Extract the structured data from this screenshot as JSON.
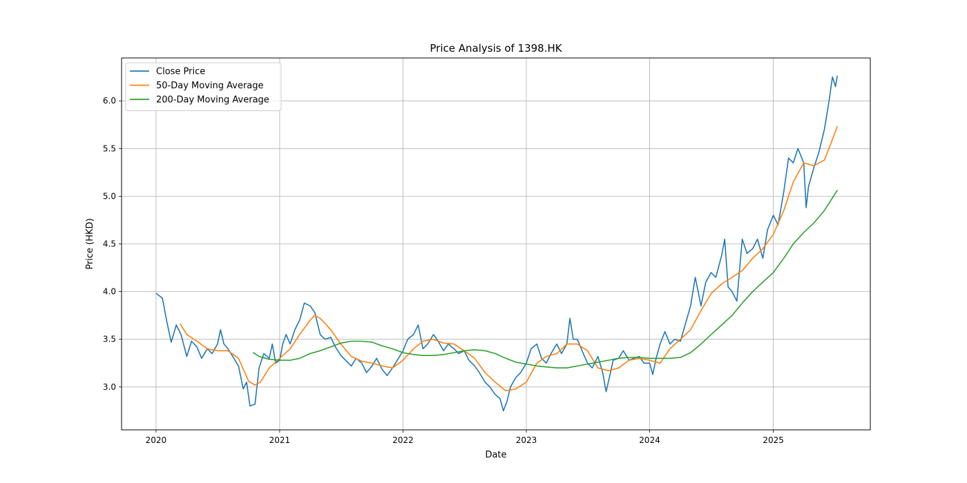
{
  "chart_data": {
    "type": "line",
    "title": "Price Analysis of 1398.HK",
    "xlabel": "Date",
    "ylabel": "Price (HKD)",
    "xlim": [
      "2019-09-21",
      "2025-10-15"
    ],
    "ylim": [
      2.55,
      6.45
    ],
    "x_ticks": [
      "2020",
      "2021",
      "2022",
      "2023",
      "2024",
      "2025"
    ],
    "y_ticks": [
      "3.0",
      "3.5",
      "4.0",
      "4.5",
      "5.0",
      "5.5",
      "6.0"
    ],
    "grid": true,
    "legend_position": "top-left",
    "series": [
      {
        "name": "Close Price",
        "color": "#1f77b4",
        "points": [
          [
            "2020-01-02",
            3.98
          ],
          [
            "2020-01-20",
            3.93
          ],
          [
            "2020-02-01",
            3.7
          ],
          [
            "2020-02-15",
            3.47
          ],
          [
            "2020-03-01",
            3.65
          ],
          [
            "2020-03-15",
            3.55
          ],
          [
            "2020-04-01",
            3.32
          ],
          [
            "2020-04-15",
            3.48
          ],
          [
            "2020-05-01",
            3.42
          ],
          [
            "2020-05-15",
            3.3
          ],
          [
            "2020-06-01",
            3.4
          ],
          [
            "2020-06-15",
            3.35
          ],
          [
            "2020-07-01",
            3.45
          ],
          [
            "2020-07-10",
            3.6
          ],
          [
            "2020-07-20",
            3.45
          ],
          [
            "2020-08-01",
            3.4
          ],
          [
            "2020-08-15",
            3.32
          ],
          [
            "2020-09-01",
            3.22
          ],
          [
            "2020-09-15",
            2.98
          ],
          [
            "2020-09-25",
            3.05
          ],
          [
            "2020-10-05",
            2.8
          ],
          [
            "2020-10-20",
            2.82
          ],
          [
            "2020-11-01",
            3.2
          ],
          [
            "2020-11-15",
            3.35
          ],
          [
            "2020-12-01",
            3.3
          ],
          [
            "2020-12-10",
            3.45
          ],
          [
            "2020-12-20",
            3.25
          ],
          [
            "2021-01-01",
            3.28
          ],
          [
            "2021-01-10",
            3.45
          ],
          [
            "2021-01-20",
            3.55
          ],
          [
            "2021-02-01",
            3.45
          ],
          [
            "2021-02-15",
            3.6
          ],
          [
            "2021-03-01",
            3.7
          ],
          [
            "2021-03-15",
            3.88
          ],
          [
            "2021-04-01",
            3.85
          ],
          [
            "2021-04-15",
            3.78
          ],
          [
            "2021-05-01",
            3.55
          ],
          [
            "2021-05-15",
            3.5
          ],
          [
            "2021-06-01",
            3.52
          ],
          [
            "2021-06-15",
            3.42
          ],
          [
            "2021-07-01",
            3.33
          ],
          [
            "2021-07-15",
            3.28
          ],
          [
            "2021-08-01",
            3.22
          ],
          [
            "2021-08-15",
            3.3
          ],
          [
            "2021-09-01",
            3.25
          ],
          [
            "2021-09-15",
            3.15
          ],
          [
            "2021-10-01",
            3.22
          ],
          [
            "2021-10-15",
            3.3
          ],
          [
            "2021-11-01",
            3.18
          ],
          [
            "2021-11-15",
            3.12
          ],
          [
            "2021-12-01",
            3.2
          ],
          [
            "2021-12-15",
            3.28
          ],
          [
            "2022-01-01",
            3.38
          ],
          [
            "2022-01-15",
            3.5
          ],
          [
            "2022-02-01",
            3.55
          ],
          [
            "2022-02-15",
            3.65
          ],
          [
            "2022-03-01",
            3.4
          ],
          [
            "2022-03-15",
            3.45
          ],
          [
            "2022-04-01",
            3.55
          ],
          [
            "2022-04-15",
            3.48
          ],
          [
            "2022-05-01",
            3.38
          ],
          [
            "2022-05-15",
            3.45
          ],
          [
            "2022-06-01",
            3.4
          ],
          [
            "2022-06-15",
            3.35
          ],
          [
            "2022-07-01",
            3.38
          ],
          [
            "2022-07-15",
            3.28
          ],
          [
            "2022-08-01",
            3.22
          ],
          [
            "2022-08-15",
            3.15
          ],
          [
            "2022-09-01",
            3.05
          ],
          [
            "2022-09-15",
            3.0
          ],
          [
            "2022-10-01",
            2.92
          ],
          [
            "2022-10-15",
            2.88
          ],
          [
            "2022-10-25",
            2.75
          ],
          [
            "2022-11-05",
            2.85
          ],
          [
            "2022-11-15",
            3.0
          ],
          [
            "2022-12-01",
            3.1
          ],
          [
            "2022-12-15",
            3.15
          ],
          [
            "2023-01-01",
            3.25
          ],
          [
            "2023-01-15",
            3.4
          ],
          [
            "2023-02-01",
            3.45
          ],
          [
            "2023-02-15",
            3.3
          ],
          [
            "2023-03-01",
            3.25
          ],
          [
            "2023-03-15",
            3.35
          ],
          [
            "2023-04-01",
            3.45
          ],
          [
            "2023-04-15",
            3.35
          ],
          [
            "2023-05-01",
            3.45
          ],
          [
            "2023-05-10",
            3.72
          ],
          [
            "2023-05-20",
            3.5
          ],
          [
            "2023-06-01",
            3.5
          ],
          [
            "2023-06-15",
            3.38
          ],
          [
            "2023-07-01",
            3.25
          ],
          [
            "2023-07-15",
            3.2
          ],
          [
            "2023-08-01",
            3.32
          ],
          [
            "2023-08-15",
            3.15
          ],
          [
            "2023-08-25",
            2.95
          ],
          [
            "2023-09-05",
            3.12
          ],
          [
            "2023-09-15",
            3.28
          ],
          [
            "2023-10-01",
            3.3
          ],
          [
            "2023-10-15",
            3.38
          ],
          [
            "2023-11-01",
            3.28
          ],
          [
            "2023-11-15",
            3.3
          ],
          [
            "2023-12-01",
            3.32
          ],
          [
            "2023-12-15",
            3.25
          ],
          [
            "2024-01-01",
            3.25
          ],
          [
            "2024-01-10",
            3.13
          ],
          [
            "2024-01-20",
            3.3
          ],
          [
            "2024-02-01",
            3.45
          ],
          [
            "2024-02-15",
            3.58
          ],
          [
            "2024-03-01",
            3.45
          ],
          [
            "2024-03-15",
            3.5
          ],
          [
            "2024-04-01",
            3.48
          ],
          [
            "2024-04-15",
            3.65
          ],
          [
            "2024-05-01",
            3.85
          ],
          [
            "2024-05-15",
            4.15
          ],
          [
            "2024-06-01",
            3.85
          ],
          [
            "2024-06-15",
            4.1
          ],
          [
            "2024-07-01",
            4.2
          ],
          [
            "2024-07-15",
            4.15
          ],
          [
            "2024-08-01",
            4.38
          ],
          [
            "2024-08-10",
            4.55
          ],
          [
            "2024-08-20",
            4.05
          ],
          [
            "2024-09-01",
            4.0
          ],
          [
            "2024-09-15",
            3.9
          ],
          [
            "2024-10-01",
            4.55
          ],
          [
            "2024-10-15",
            4.4
          ],
          [
            "2024-11-01",
            4.45
          ],
          [
            "2024-11-15",
            4.55
          ],
          [
            "2024-12-01",
            4.35
          ],
          [
            "2024-12-15",
            4.65
          ],
          [
            "2025-01-01",
            4.8
          ],
          [
            "2025-01-15",
            4.7
          ],
          [
            "2025-02-01",
            5.05
          ],
          [
            "2025-02-15",
            5.4
          ],
          [
            "2025-03-01",
            5.35
          ],
          [
            "2025-03-15",
            5.5
          ],
          [
            "2025-04-01",
            5.35
          ],
          [
            "2025-04-08",
            4.88
          ],
          [
            "2025-04-15",
            5.1
          ],
          [
            "2025-05-01",
            5.3
          ],
          [
            "2025-05-15",
            5.45
          ],
          [
            "2025-06-01",
            5.7
          ],
          [
            "2025-06-15",
            6.0
          ],
          [
            "2025-06-25",
            6.25
          ],
          [
            "2025-07-04",
            6.15
          ],
          [
            "2025-07-09",
            6.26
          ]
        ]
      },
      {
        "name": "50-Day Moving Average",
        "color": "#ff7f0e",
        "points": [
          [
            "2020-03-13",
            3.66
          ],
          [
            "2020-04-01",
            3.55
          ],
          [
            "2020-05-01",
            3.48
          ],
          [
            "2020-06-01",
            3.4
          ],
          [
            "2020-07-01",
            3.38
          ],
          [
            "2020-08-01",
            3.38
          ],
          [
            "2020-09-01",
            3.3
          ],
          [
            "2020-09-20",
            3.15
          ],
          [
            "2020-10-01",
            3.06
          ],
          [
            "2020-10-20",
            3.02
          ],
          [
            "2020-11-05",
            3.05
          ],
          [
            "2020-12-01",
            3.2
          ],
          [
            "2021-01-01",
            3.3
          ],
          [
            "2021-02-01",
            3.4
          ],
          [
            "2021-03-01",
            3.55
          ],
          [
            "2021-04-01",
            3.7
          ],
          [
            "2021-04-15",
            3.75
          ],
          [
            "2021-05-01",
            3.72
          ],
          [
            "2021-06-01",
            3.6
          ],
          [
            "2021-07-01",
            3.45
          ],
          [
            "2021-08-01",
            3.32
          ],
          [
            "2021-09-01",
            3.27
          ],
          [
            "2021-10-01",
            3.25
          ],
          [
            "2021-11-01",
            3.22
          ],
          [
            "2021-12-01",
            3.2
          ],
          [
            "2022-01-01",
            3.28
          ],
          [
            "2022-02-01",
            3.4
          ],
          [
            "2022-03-01",
            3.48
          ],
          [
            "2022-04-01",
            3.5
          ],
          [
            "2022-05-01",
            3.46
          ],
          [
            "2022-06-01",
            3.45
          ],
          [
            "2022-07-01",
            3.38
          ],
          [
            "2022-08-01",
            3.3
          ],
          [
            "2022-09-01",
            3.15
          ],
          [
            "2022-10-01",
            3.05
          ],
          [
            "2022-11-01",
            2.96
          ],
          [
            "2022-12-01",
            2.98
          ],
          [
            "2023-01-01",
            3.05
          ],
          [
            "2023-02-01",
            3.25
          ],
          [
            "2023-03-01",
            3.32
          ],
          [
            "2023-04-01",
            3.35
          ],
          [
            "2023-05-01",
            3.45
          ],
          [
            "2023-06-01",
            3.45
          ],
          [
            "2023-07-01",
            3.38
          ],
          [
            "2023-08-01",
            3.2
          ],
          [
            "2023-09-01",
            3.17
          ],
          [
            "2023-10-01",
            3.2
          ],
          [
            "2023-11-01",
            3.28
          ],
          [
            "2023-12-01",
            3.3
          ],
          [
            "2024-01-01",
            3.28
          ],
          [
            "2024-02-01",
            3.25
          ],
          [
            "2024-03-01",
            3.4
          ],
          [
            "2024-04-01",
            3.5
          ],
          [
            "2024-05-01",
            3.6
          ],
          [
            "2024-06-01",
            3.8
          ],
          [
            "2024-07-01",
            3.98
          ],
          [
            "2024-08-01",
            4.08
          ],
          [
            "2024-09-01",
            4.15
          ],
          [
            "2024-10-01",
            4.22
          ],
          [
            "2024-11-01",
            4.35
          ],
          [
            "2024-12-01",
            4.45
          ],
          [
            "2025-01-01",
            4.6
          ],
          [
            "2025-02-01",
            4.85
          ],
          [
            "2025-03-01",
            5.15
          ],
          [
            "2025-04-01",
            5.35
          ],
          [
            "2025-05-01",
            5.32
          ],
          [
            "2025-06-01",
            5.38
          ],
          [
            "2025-06-20",
            5.55
          ],
          [
            "2025-07-09",
            5.73
          ]
        ]
      },
      {
        "name": "200-Day Moving Average",
        "color": "#2ca02c",
        "points": [
          [
            "2020-10-15",
            3.36
          ],
          [
            "2020-11-01",
            3.32
          ],
          [
            "2020-12-01",
            3.29
          ],
          [
            "2021-01-01",
            3.28
          ],
          [
            "2021-02-01",
            3.28
          ],
          [
            "2021-03-01",
            3.3
          ],
          [
            "2021-04-01",
            3.35
          ],
          [
            "2021-05-01",
            3.38
          ],
          [
            "2021-06-01",
            3.42
          ],
          [
            "2021-07-01",
            3.46
          ],
          [
            "2021-08-01",
            3.48
          ],
          [
            "2021-09-01",
            3.48
          ],
          [
            "2021-10-01",
            3.47
          ],
          [
            "2021-11-01",
            3.43
          ],
          [
            "2021-12-01",
            3.4
          ],
          [
            "2022-01-01",
            3.36
          ],
          [
            "2022-02-01",
            3.34
          ],
          [
            "2022-03-01",
            3.33
          ],
          [
            "2022-04-01",
            3.33
          ],
          [
            "2022-05-01",
            3.34
          ],
          [
            "2022-06-01",
            3.36
          ],
          [
            "2022-07-01",
            3.38
          ],
          [
            "2022-08-01",
            3.39
          ],
          [
            "2022-09-01",
            3.38
          ],
          [
            "2022-10-01",
            3.35
          ],
          [
            "2022-11-01",
            3.3
          ],
          [
            "2022-12-01",
            3.26
          ],
          [
            "2023-01-01",
            3.24
          ],
          [
            "2023-02-01",
            3.22
          ],
          [
            "2023-03-01",
            3.21
          ],
          [
            "2023-04-01",
            3.2
          ],
          [
            "2023-05-01",
            3.2
          ],
          [
            "2023-06-01",
            3.22
          ],
          [
            "2023-07-01",
            3.24
          ],
          [
            "2023-08-01",
            3.26
          ],
          [
            "2023-09-01",
            3.28
          ],
          [
            "2023-10-01",
            3.3
          ],
          [
            "2023-11-01",
            3.31
          ],
          [
            "2023-12-01",
            3.31
          ],
          [
            "2024-01-01",
            3.3
          ],
          [
            "2024-02-01",
            3.3
          ],
          [
            "2024-03-01",
            3.3
          ],
          [
            "2024-04-01",
            3.31
          ],
          [
            "2024-05-01",
            3.36
          ],
          [
            "2024-06-01",
            3.45
          ],
          [
            "2024-07-01",
            3.55
          ],
          [
            "2024-08-01",
            3.65
          ],
          [
            "2024-09-01",
            3.75
          ],
          [
            "2024-10-01",
            3.88
          ],
          [
            "2024-11-01",
            4.0
          ],
          [
            "2024-12-01",
            4.1
          ],
          [
            "2025-01-01",
            4.2
          ],
          [
            "2025-02-01",
            4.35
          ],
          [
            "2025-03-01",
            4.5
          ],
          [
            "2025-04-01",
            4.62
          ],
          [
            "2025-05-01",
            4.72
          ],
          [
            "2025-06-01",
            4.85
          ],
          [
            "2025-07-09",
            5.06
          ]
        ]
      }
    ]
  }
}
